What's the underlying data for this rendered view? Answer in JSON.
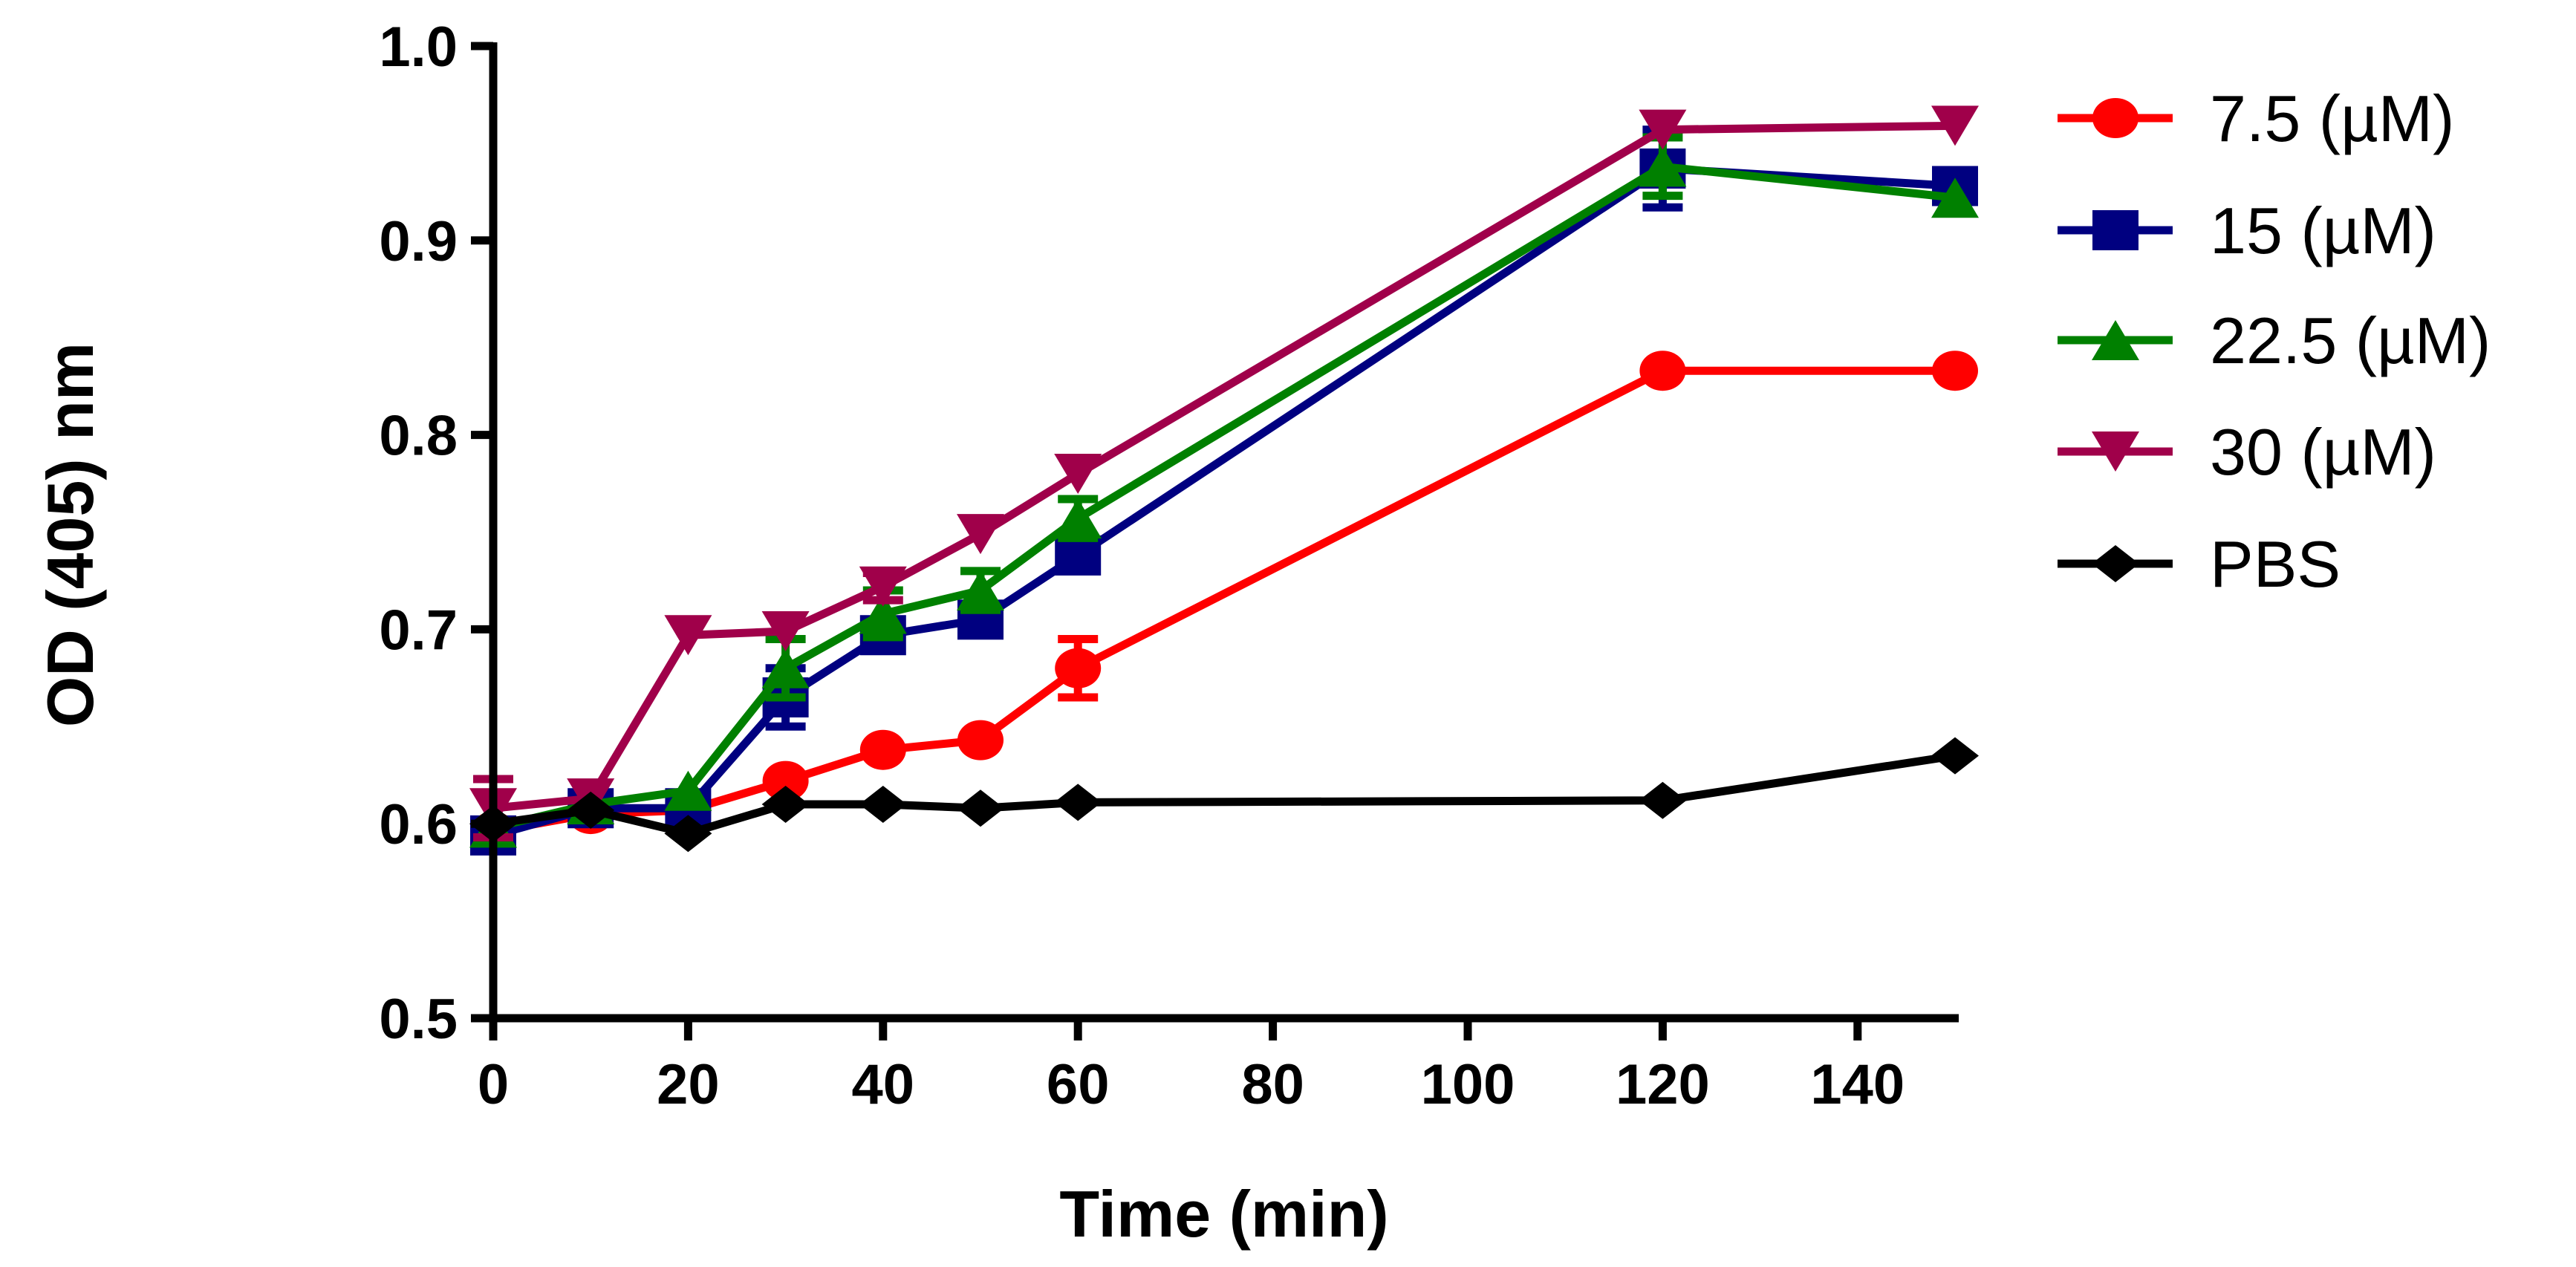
{
  "chart_data": {
    "type": "line",
    "title": "",
    "xlabel": "Time (min)",
    "ylabel": "OD (405) nm",
    "xlim": [
      0,
      150
    ],
    "ylim": [
      0.5,
      1.0
    ],
    "xticks": [
      "0",
      "20",
      "40",
      "60",
      "80",
      "100",
      "120",
      "140"
    ],
    "yticks": [
      "0.5",
      "0.6",
      "0.7",
      "0.8",
      "0.9",
      "1.0"
    ],
    "grid": false,
    "legend_position": "right",
    "x": [
      0,
      10,
      20,
      30,
      40,
      50,
      60,
      120,
      150
    ],
    "series": [
      {
        "name": "7.5 (µM)",
        "color": "#ff0000",
        "marker": "circle",
        "values": [
          0.596,
          0.605,
          0.607,
          0.622,
          0.638,
          0.643,
          0.68,
          0.833,
          0.833
        ],
        "errors": [
          0.005,
          0.003,
          0.003,
          0.004,
          0.003,
          0.003,
          0.015,
          0.003,
          0.003
        ]
      },
      {
        "name": "15 (µM)",
        "color": "#000080",
        "marker": "square",
        "values": [
          0.594,
          0.608,
          0.608,
          0.665,
          0.697,
          0.705,
          0.738,
          0.937,
          0.928
        ],
        "errors": [
          0.008,
          0.004,
          0.004,
          0.015,
          0.005,
          0.004,
          0.005,
          0.02,
          0.004
        ]
      },
      {
        "name": "22.5 (µM)",
        "color": "#008000",
        "marker": "triangle-up",
        "values": [
          0.598,
          0.61,
          0.617,
          0.68,
          0.708,
          0.72,
          0.757,
          0.938,
          0.922
        ],
        "errors": [
          0.004,
          0.003,
          0.004,
          0.015,
          0.012,
          0.01,
          0.01,
          0.015,
          0.003
        ]
      },
      {
        "name": "30 (µM)",
        "color": "#a0004a",
        "marker": "triangle-down",
        "values": [
          0.608,
          0.613,
          0.697,
          0.699,
          0.722,
          0.749,
          0.78,
          0.957,
          0.959
        ],
        "errors": [
          0.015,
          0.004,
          0.003,
          0.003,
          0.007,
          0.003,
          0.003,
          0.003,
          0.003
        ]
      },
      {
        "name": "PBS",
        "color": "#000000",
        "marker": "diamond",
        "values": [
          0.6,
          0.607,
          0.595,
          0.61,
          0.61,
          0.608,
          0.611,
          0.612,
          0.635
        ],
        "errors": [
          0,
          0,
          0,
          0,
          0,
          0,
          0,
          0,
          0
        ]
      }
    ]
  }
}
